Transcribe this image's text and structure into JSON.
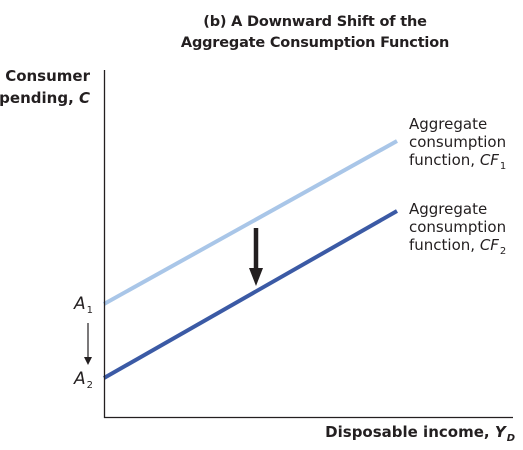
{
  "title": {
    "line1": "(b) A Downward Shift of the",
    "line2": "Aggregate Consumption Function"
  },
  "y_axis": {
    "line1": "Consumer",
    "line2_text": "spending, ",
    "line2_symbol": "C"
  },
  "x_axis": {
    "text": "Disposable income, ",
    "symbol": "Y",
    "subscript": "D"
  },
  "curves": [
    {
      "id": "CF1",
      "label_line1": "Aggregate",
      "label_line2": "consumption",
      "label_line3_text": "function, ",
      "label_symbol": "CF",
      "label_subscript": "1",
      "color": "#a9c6e8"
    },
    {
      "id": "CF2",
      "label_line1": "Aggregate",
      "label_line2": "consumption",
      "label_line3_text": "function, ",
      "label_symbol": "CF",
      "label_subscript": "2",
      "color": "#3b5aa5"
    }
  ],
  "intercepts": [
    {
      "symbol": "A",
      "subscript": "1"
    },
    {
      "symbol": "A",
      "subscript": "2"
    }
  ],
  "colors": {
    "axis": "#231f20",
    "arrow": "#231f20",
    "cf1": "#a9c6e8",
    "cf2": "#3b5aa5"
  }
}
